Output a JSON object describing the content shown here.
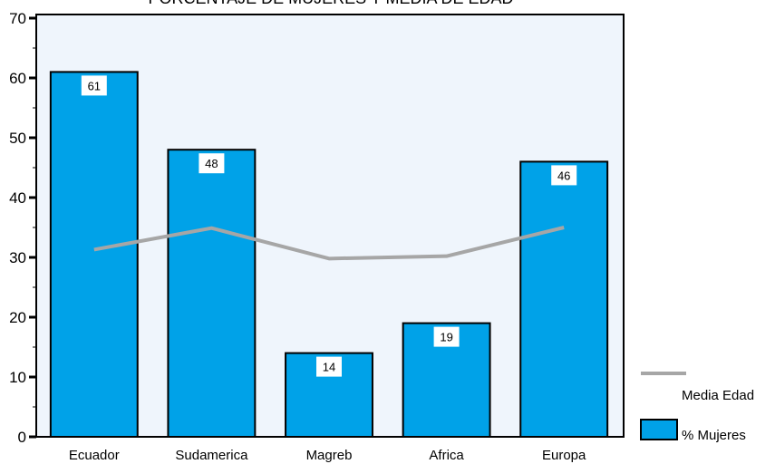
{
  "chart_data": {
    "type": "bar",
    "title": "PORCENTAJE DE MUJERES Y MEDIA DE EDAD",
    "categories": [
      "Ecuador",
      "Sudamerica",
      "Magreb",
      "Africa",
      "Europa"
    ],
    "series": [
      {
        "name": "% Mujeres",
        "type": "bar",
        "values": [
          61,
          48,
          14,
          19,
          46
        ],
        "color": "#00a2e8",
        "data_labels": [
          "61",
          "48",
          "14",
          "19",
          "46"
        ]
      },
      {
        "name": "Media Edad",
        "type": "line",
        "values": [
          31.3,
          34.9,
          29.8,
          30.2,
          35.0
        ],
        "color": "#a6a6a6"
      }
    ],
    "ylim": [
      0,
      70
    ],
    "yticks": [
      "0",
      "10",
      "20",
      "30",
      "40",
      "50",
      "60",
      "70"
    ],
    "xlabel": "",
    "ylabel": "",
    "legend_position": "right",
    "plot_background": "#eff5fc",
    "grid": false
  }
}
